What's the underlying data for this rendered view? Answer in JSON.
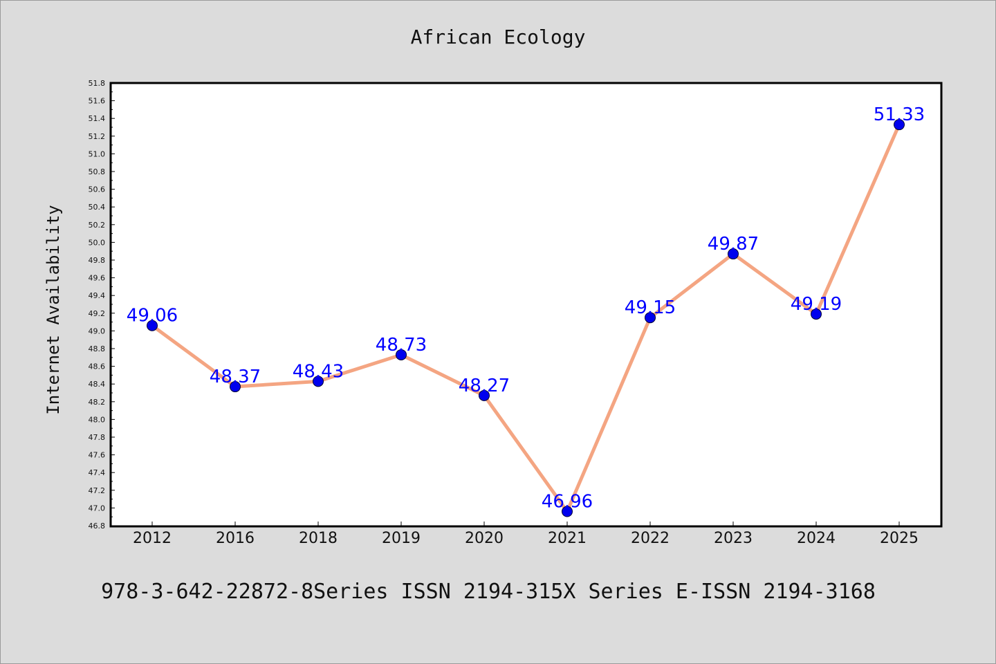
{
  "chart_data": {
    "type": "line",
    "title": "African Ecology",
    "xlabel": "",
    "ylabel": "Internet Availability",
    "categories": [
      "2012",
      "2016",
      "2018",
      "2019",
      "2020",
      "2021",
      "2022",
      "2023",
      "2024",
      "2025"
    ],
    "series": [
      {
        "values": [
          49.06,
          48.37,
          48.43,
          48.73,
          48.27,
          46.96,
          49.15,
          49.87,
          49.19,
          51.33
        ],
        "value_labels": [
          "49.06",
          "48.37",
          "48.43",
          "48.73",
          "48.27",
          "46.96",
          "49.15",
          "49.87",
          "49.19",
          "51.33"
        ]
      }
    ],
    "ylim": [
      46.8,
      51.8
    ],
    "yticks": [
      "46.8",
      "47.0",
      "47.2",
      "47.4",
      "47.6",
      "47.8",
      "48.0",
      "48.2",
      "48.4",
      "48.6",
      "48.8",
      "49.0",
      "49.2",
      "49.4",
      "49.6",
      "49.8",
      "50.0",
      "50.2",
      "50.4",
      "50.6",
      "50.8",
      "51.0",
      "51.2",
      "51.4",
      "51.6",
      "51.8"
    ],
    "grid": false,
    "legend": "none",
    "colors": {
      "line": "#f4a582",
      "marker": "#0000ee",
      "data_label": "#0000ff"
    }
  },
  "footer": "978-3-642-22872-8Series ISSN 2194-315X Series E-ISSN 2194-3168"
}
